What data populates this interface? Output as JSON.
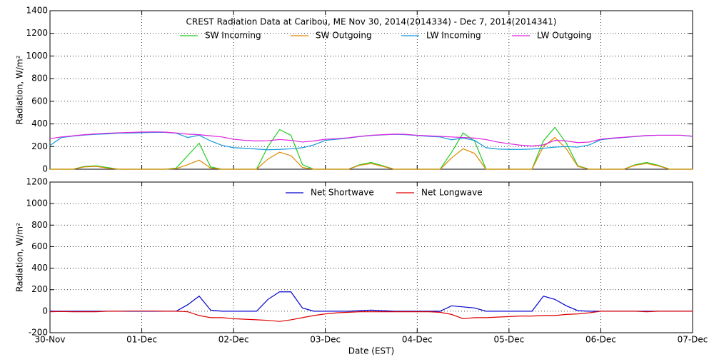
{
  "chart_data": [
    {
      "type": "line",
      "title": "CREST Radiation Data at Caribou, ME   Nov 30, 2014(2014334) - Dec  7, 2014(2014341)",
      "y_label": "Radiation, W/m²",
      "x": [
        0,
        0.125,
        0.25,
        0.375,
        0.5,
        0.625,
        0.75,
        0.875,
        1,
        1.125,
        1.25,
        1.375,
        1.5,
        1.625,
        1.75,
        1.875,
        2,
        2.125,
        2.25,
        2.375,
        2.5,
        2.625,
        2.75,
        2.875,
        3,
        3.125,
        3.25,
        3.375,
        3.5,
        3.625,
        3.75,
        3.875,
        4,
        4.125,
        4.25,
        4.375,
        4.5,
        4.625,
        4.75,
        4.875,
        5,
        5.125,
        5.25,
        5.375,
        5.5,
        5.625,
        5.75,
        5.875,
        6,
        6.125,
        6.25,
        6.375,
        6.5,
        6.625,
        6.75,
        6.875,
        7
      ],
      "xlim": [
        0,
        7
      ],
      "xticks": [
        0,
        1,
        2,
        3,
        4,
        5,
        6,
        7
      ],
      "ylim": [
        0,
        1400
      ],
      "yticks": [
        0,
        200,
        400,
        600,
        800,
        1000,
        1200,
        1400
      ],
      "grid": true,
      "series": [
        {
          "name": "SW Incoming",
          "color": "#22cc22",
          "values": [
            0,
            0,
            0,
            25,
            30,
            15,
            0,
            0,
            0,
            0,
            0,
            10,
            120,
            230,
            20,
            0,
            0,
            0,
            0,
            200,
            350,
            300,
            40,
            0,
            0,
            0,
            0,
            40,
            60,
            30,
            0,
            0,
            0,
            0,
            0,
            150,
            320,
            250,
            0,
            0,
            0,
            0,
            0,
            250,
            370,
            230,
            30,
            0,
            0,
            0,
            0,
            40,
            60,
            35,
            0,
            0,
            0
          ]
        },
        {
          "name": "SW Outgoing",
          "color": "#dd8800",
          "values": [
            0,
            0,
            0,
            20,
            25,
            10,
            0,
            0,
            0,
            0,
            0,
            5,
            40,
            80,
            10,
            0,
            0,
            0,
            0,
            90,
            150,
            120,
            15,
            0,
            0,
            0,
            0,
            35,
            50,
            25,
            0,
            0,
            0,
            0,
            0,
            100,
            180,
            140,
            0,
            0,
            0,
            0,
            0,
            200,
            280,
            180,
            25,
            0,
            0,
            0,
            0,
            35,
            50,
            30,
            0,
            0,
            0
          ]
        },
        {
          "name": "LW Incoming",
          "color": "#1199dd",
          "values": [
            210,
            280,
            292,
            302,
            308,
            312,
            318,
            320,
            322,
            325,
            325,
            318,
            280,
            300,
            250,
            210,
            190,
            185,
            178,
            172,
            175,
            180,
            190,
            215,
            255,
            265,
            275,
            288,
            298,
            303,
            308,
            305,
            298,
            290,
            285,
            260,
            275,
            255,
            190,
            178,
            175,
            175,
            178,
            185,
            195,
            200,
            195,
            215,
            260,
            272,
            280,
            288,
            296,
            300,
            300,
            300,
            290
          ]
        },
        {
          "name": "LW Outgoing",
          "color": "#dd22dd",
          "values": [
            270,
            285,
            295,
            305,
            312,
            318,
            322,
            325,
            328,
            330,
            328,
            320,
            310,
            305,
            295,
            285,
            265,
            255,
            250,
            252,
            262,
            255,
            240,
            250,
            265,
            270,
            278,
            290,
            300,
            305,
            310,
            308,
            300,
            295,
            290,
            285,
            280,
            275,
            262,
            240,
            225,
            212,
            205,
            215,
            255,
            250,
            235,
            240,
            265,
            275,
            282,
            290,
            298,
            300,
            300,
            300,
            292
          ]
        }
      ]
    },
    {
      "type": "line",
      "x_label": "Date (EST)",
      "y_label": "Radiation, W/m²",
      "x": [
        0,
        0.125,
        0.25,
        0.375,
        0.5,
        0.625,
        0.75,
        0.875,
        1,
        1.125,
        1.25,
        1.375,
        1.5,
        1.625,
        1.75,
        1.875,
        2,
        2.125,
        2.25,
        2.375,
        2.5,
        2.625,
        2.75,
        2.875,
        3,
        3.125,
        3.25,
        3.375,
        3.5,
        3.625,
        3.75,
        3.875,
        4,
        4.125,
        4.25,
        4.375,
        4.5,
        4.625,
        4.75,
        4.875,
        5,
        5.125,
        5.25,
        5.375,
        5.5,
        5.625,
        5.75,
        5.875,
        6,
        6.125,
        6.25,
        6.375,
        6.5,
        6.625,
        6.75,
        6.875,
        7
      ],
      "xlim": [
        0,
        7
      ],
      "xticks": [
        {
          "value": 0,
          "label": "30-Nov"
        },
        {
          "value": 1,
          "label": "01-Dec"
        },
        {
          "value": 2,
          "label": "02-Dec"
        },
        {
          "value": 3,
          "label": "03-Dec"
        },
        {
          "value": 4,
          "label": "04-Dec"
        },
        {
          "value": 5,
          "label": "05-Dec"
        },
        {
          "value": 6,
          "label": "06-Dec"
        },
        {
          "value": 7,
          "label": "07-Dec"
        }
      ],
      "ylim": [
        -200,
        1200
      ],
      "yticks": [
        -200,
        0,
        200,
        400,
        600,
        800,
        1000,
        1200
      ],
      "grid": true,
      "series": [
        {
          "name": "Net Shortwave",
          "color": "#0000cc",
          "values": [
            0,
            0,
            0,
            0,
            0,
            0,
            0,
            0,
            0,
            0,
            0,
            0,
            60,
            140,
            10,
            0,
            0,
            0,
            0,
            110,
            180,
            180,
            30,
            0,
            0,
            0,
            0,
            5,
            10,
            5,
            0,
            0,
            0,
            0,
            0,
            50,
            40,
            30,
            0,
            0,
            0,
            0,
            0,
            140,
            110,
            50,
            5,
            0,
            0,
            0,
            0,
            0,
            0,
            0,
            0,
            0,
            0
          ]
        },
        {
          "name": "Net Longwave",
          "color": "#dd0000",
          "values": [
            -5,
            -3,
            -5,
            -5,
            -5,
            0,
            0,
            2,
            2,
            2,
            0,
            0,
            -5,
            -40,
            -60,
            -60,
            -70,
            -75,
            -80,
            -85,
            -95,
            -80,
            -60,
            -40,
            -25,
            -15,
            -10,
            -5,
            -5,
            -5,
            -5,
            -5,
            -5,
            -5,
            -10,
            -30,
            -70,
            -60,
            -60,
            -55,
            -50,
            -45,
            -45,
            -40,
            -40,
            -30,
            -25,
            -15,
            0,
            0,
            0,
            0,
            -5,
            0,
            0,
            0,
            0
          ]
        }
      ]
    }
  ]
}
